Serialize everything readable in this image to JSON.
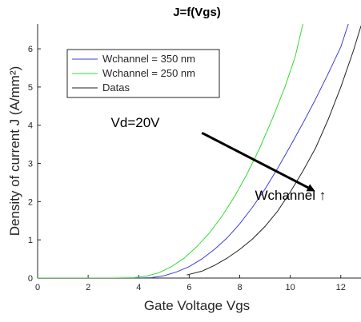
{
  "chart_data": {
    "type": "line",
    "title": "J=f(Vgs)",
    "xlabel": "Gate Voltage Vgs",
    "ylabel": "Density of current J (A/mm²)",
    "xlim": [
      0,
      12.8
    ],
    "ylim": [
      0,
      6.65
    ],
    "xticks": [
      0,
      2,
      4,
      6,
      8,
      10,
      12
    ],
    "yticks": [
      0,
      1,
      2,
      3,
      4,
      5,
      6
    ],
    "grid": false,
    "legend_position": "top-left",
    "series": [
      {
        "name": "Wchannel = 350 nm",
        "color": "#3c3cdc",
        "x": [
          0,
          3,
          4,
          4.5,
          5,
          5.5,
          6,
          6.5,
          7,
          7.5,
          8,
          8.5,
          9,
          9.5,
          10,
          10.5,
          11,
          11.5,
          12,
          12.3
        ],
        "y": [
          0,
          0,
          0,
          0.01,
          0.06,
          0.16,
          0.3,
          0.5,
          0.75,
          1.05,
          1.42,
          1.85,
          2.33,
          2.87,
          3.45,
          4.05,
          4.68,
          5.35,
          6.05,
          6.65
        ]
      },
      {
        "name": "Wchannel = 250 nm",
        "color": "#32dc32",
        "x": [
          0,
          3,
          3.8,
          4.3,
          4.8,
          5.3,
          5.8,
          6.3,
          6.8,
          7.3,
          7.8,
          8.3,
          8.8,
          9.3,
          9.8,
          10.2,
          10.5
        ],
        "y": [
          0,
          0,
          0.01,
          0.05,
          0.14,
          0.3,
          0.52,
          0.82,
          1.18,
          1.62,
          2.14,
          2.74,
          3.42,
          4.18,
          5.02,
          5.8,
          6.65
        ]
      },
      {
        "name": "Datas",
        "color": "#222222",
        "x": [
          5.9,
          6.5,
          7,
          7.5,
          8,
          8.5,
          9,
          9.5,
          10,
          10.5,
          11,
          11.5,
          12,
          12.5,
          12.8
        ],
        "y": [
          0.08,
          0.18,
          0.33,
          0.52,
          0.75,
          1.02,
          1.35,
          1.75,
          2.25,
          2.8,
          3.4,
          4.15,
          5.0,
          5.95,
          6.6
        ]
      }
    ],
    "annotations": [
      {
        "text": "Vd=20V",
        "x": 2.9,
        "y": 3.95
      },
      {
        "text": "Wchannel ↑",
        "x": 8.6,
        "y": 2.05
      }
    ],
    "arrow": {
      "from": [
        6.5,
        3.8
      ],
      "to": [
        10.9,
        2.3
      ],
      "color": "#000000"
    }
  }
}
